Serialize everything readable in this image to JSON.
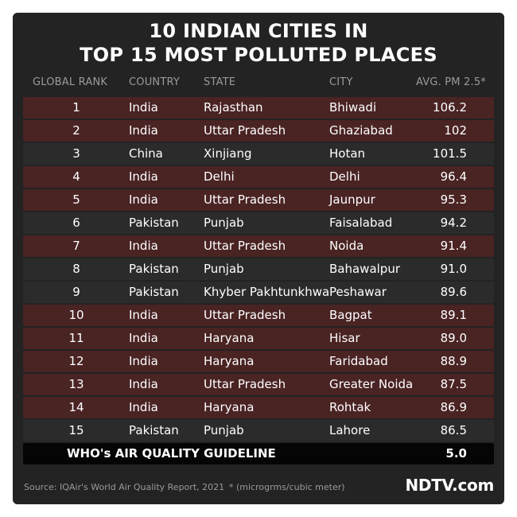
{
  "title": {
    "line1": "10 INDIAN CITIES IN",
    "line2": "TOP 15 MOST POLLUTED PLACES"
  },
  "table": {
    "headers": {
      "rank": "GLOBAL RANK",
      "country": "COUNTRY",
      "state": "STATE",
      "city": "CITY",
      "pm": "AVG. PM 2.5*"
    },
    "rows": [
      {
        "rank": "1",
        "country": "India",
        "state": "Rajasthan",
        "city": "Bhiwadi",
        "pm": "106.2"
      },
      {
        "rank": "2",
        "country": "India",
        "state": "Uttar Pradesh",
        "city": "Ghaziabad",
        "pm": "102"
      },
      {
        "rank": "3",
        "country": "China",
        "state": "Xinjiang",
        "city": "Hotan",
        "pm": "101.5"
      },
      {
        "rank": "4",
        "country": "India",
        "state": "Delhi",
        "city": "Delhi",
        "pm": "96.4"
      },
      {
        "rank": "5",
        "country": "India",
        "state": "Uttar Pradesh",
        "city": "Jaunpur",
        "pm": "95.3"
      },
      {
        "rank": "6",
        "country": "Pakistan",
        "state": "Punjab",
        "city": "Faisalabad",
        "pm": "94.2"
      },
      {
        "rank": "7",
        "country": "India",
        "state": "Uttar Pradesh",
        "city": "Noida",
        "pm": "91.4"
      },
      {
        "rank": "8",
        "country": "Pakistan",
        "state": "Punjab",
        "city": "Bahawalpur",
        "pm": "91.0"
      },
      {
        "rank": "9",
        "country": "Pakistan",
        "state": "Khyber Pakhtunkhwa",
        "city": "Peshawar",
        "pm": "89.6"
      },
      {
        "rank": "10",
        "country": "India",
        "state": "Uttar Pradesh",
        "city": "Bagpat",
        "pm": "89.1"
      },
      {
        "rank": "11",
        "country": "India",
        "state": "Haryana",
        "city": "Hisar",
        "pm": "89.0"
      },
      {
        "rank": "12",
        "country": "India",
        "state": "Haryana",
        "city": "Faridabad",
        "pm": "88.9"
      },
      {
        "rank": "13",
        "country": "India",
        "state": "Uttar Pradesh",
        "city": "Greater Noida",
        "pm": "87.5"
      },
      {
        "rank": "14",
        "country": "India",
        "state": "Haryana",
        "city": "Rohtak",
        "pm": "86.9"
      },
      {
        "rank": "15",
        "country": "Pakistan",
        "state": "Punjab",
        "city": "Lahore",
        "pm": "86.5"
      }
    ],
    "guideline": {
      "label": "WHO's AIR QUALITY GUIDELINE",
      "value": "5.0"
    }
  },
  "footer": {
    "source": "Source: IQAir's World Air Quality Report, 2021",
    "note": "* (microgrms/cubic meter)",
    "logo": "NDTV.com"
  },
  "colors": {
    "card_background": "#232323",
    "highlight_row": "#4a2323",
    "plain_row": "#2b2b2b",
    "guideline_row": "#050505"
  }
}
